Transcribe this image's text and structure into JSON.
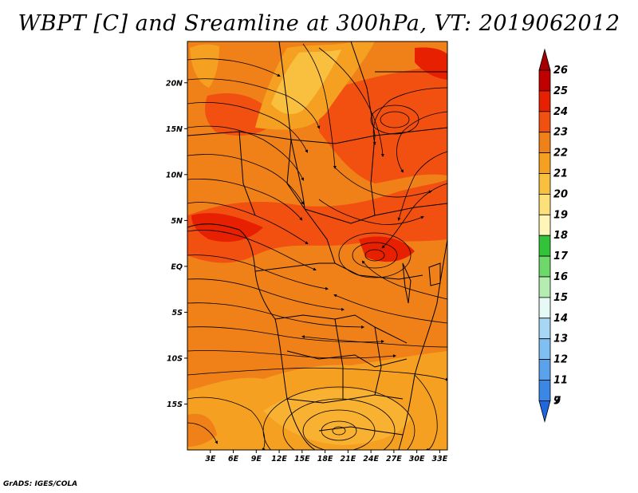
{
  "title": "WBPT [C] and Sreamline at 300hPa, VT: 2019062012",
  "credit": "GrADS: IGES/COLA",
  "map": {
    "variable": "WBPT",
    "units": "C",
    "level": "300hPa",
    "valid_time": "2019062012",
    "lat_range": [
      -20,
      24.5
    ],
    "lon_range": [
      0,
      34
    ],
    "lat_ticks": [
      {
        "value": 20,
        "label": "20N"
      },
      {
        "value": 15,
        "label": "15N"
      },
      {
        "value": 10,
        "label": "10N"
      },
      {
        "value": 5,
        "label": "5N"
      },
      {
        "value": 0,
        "label": "EQ"
      },
      {
        "value": -5,
        "label": "5S"
      },
      {
        "value": -10,
        "label": "10S"
      },
      {
        "value": -15,
        "label": "15S"
      }
    ],
    "lon_ticks": [
      {
        "value": 3,
        "label": "3E"
      },
      {
        "value": 6,
        "label": "6E"
      },
      {
        "value": 9,
        "label": "9E"
      },
      {
        "value": 12,
        "label": "12E"
      },
      {
        "value": 15,
        "label": "15E"
      },
      {
        "value": 18,
        "label": "18E"
      },
      {
        "value": 21,
        "label": "21E"
      },
      {
        "value": 24,
        "label": "24E"
      },
      {
        "value": 27,
        "label": "27E"
      },
      {
        "value": 30,
        "label": "30E"
      },
      {
        "value": 33,
        "label": "33E"
      }
    ]
  },
  "colorbar": {
    "levels": [
      {
        "label": "26",
        "color": "#a50000"
      },
      {
        "label": "25",
        "color": "#c00000"
      },
      {
        "label": "24",
        "color": "#e62000"
      },
      {
        "label": "23",
        "color": "#f25010"
      },
      {
        "label": "22",
        "color": "#f08018"
      },
      {
        "label": "21",
        "color": "#f5a020"
      },
      {
        "label": "20",
        "color": "#f9c040"
      },
      {
        "label": "19",
        "color": "#fde07a"
      },
      {
        "label": "18",
        "color": "#fff5b8"
      },
      {
        "label": "17",
        "color": "#33c33a"
      },
      {
        "label": "16",
        "color": "#6fd86a"
      },
      {
        "label": "15",
        "color": "#b5ecb0"
      },
      {
        "label": "14",
        "color": "#e6f9f5"
      },
      {
        "label": "13",
        "color": "#a8d6f5"
      },
      {
        "label": "12",
        "color": "#7fbff2"
      },
      {
        "label": "11",
        "color": "#5aa2ec"
      },
      {
        "label": "9",
        "color": "#3a87e6"
      },
      {
        "label": "7",
        "color": "#2067dc"
      }
    ]
  }
}
